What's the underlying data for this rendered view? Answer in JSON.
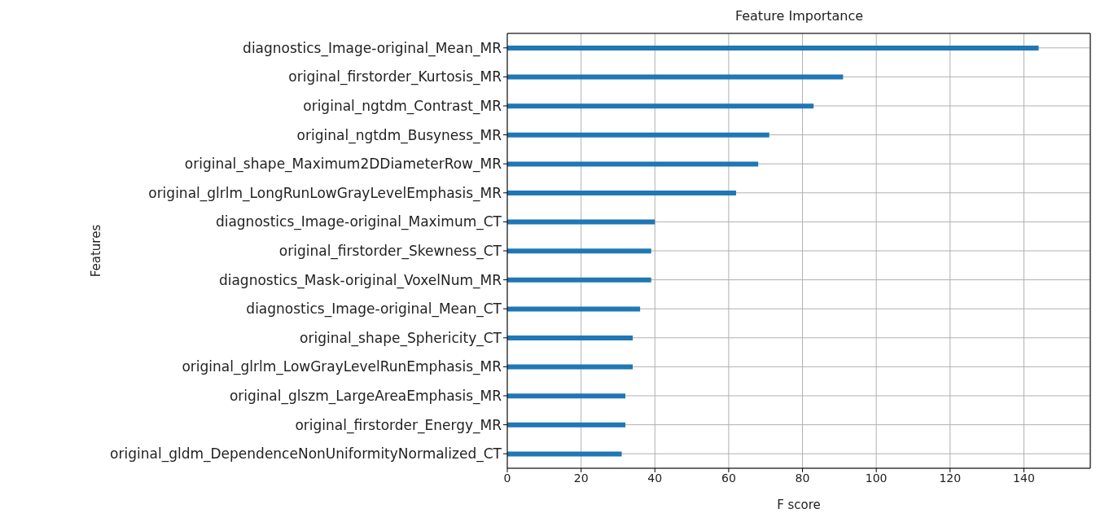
{
  "chart_data": {
    "type": "bar",
    "orientation": "horizontal",
    "title": "Feature Importance",
    "xlabel": "F score",
    "ylabel": "Features",
    "categories": [
      "diagnostics_Image-original_Mean_MR",
      "original_firstorder_Kurtosis_MR",
      "original_ngtdm_Contrast_MR",
      "original_ngtdm_Busyness_MR",
      "original_shape_Maximum2DDiameterRow_MR",
      "original_glrlm_LongRunLowGrayLevelEmphasis_MR",
      "diagnostics_Image-original_Maximum_CT",
      "original_firstorder_Skewness_CT",
      "diagnostics_Mask-original_VoxelNum_MR",
      "diagnostics_Image-original_Mean_CT",
      "original_shape_Sphericity_CT",
      "original_glrlm_LowGrayLevelRunEmphasis_MR",
      "original_glszm_LargeAreaEmphasis_MR",
      "original_firstorder_Energy_MR",
      "original_gldm_DependenceNonUniformityNormalized_CT"
    ],
    "values": [
      144,
      91,
      83,
      71,
      68,
      62,
      40,
      39,
      39,
      36,
      34,
      34,
      32,
      32,
      31
    ],
    "color": "#1f77b4",
    "xlim": [
      0,
      158
    ],
    "xticks": [
      0,
      20,
      40,
      60,
      80,
      100,
      120,
      140
    ],
    "grid": true
  }
}
